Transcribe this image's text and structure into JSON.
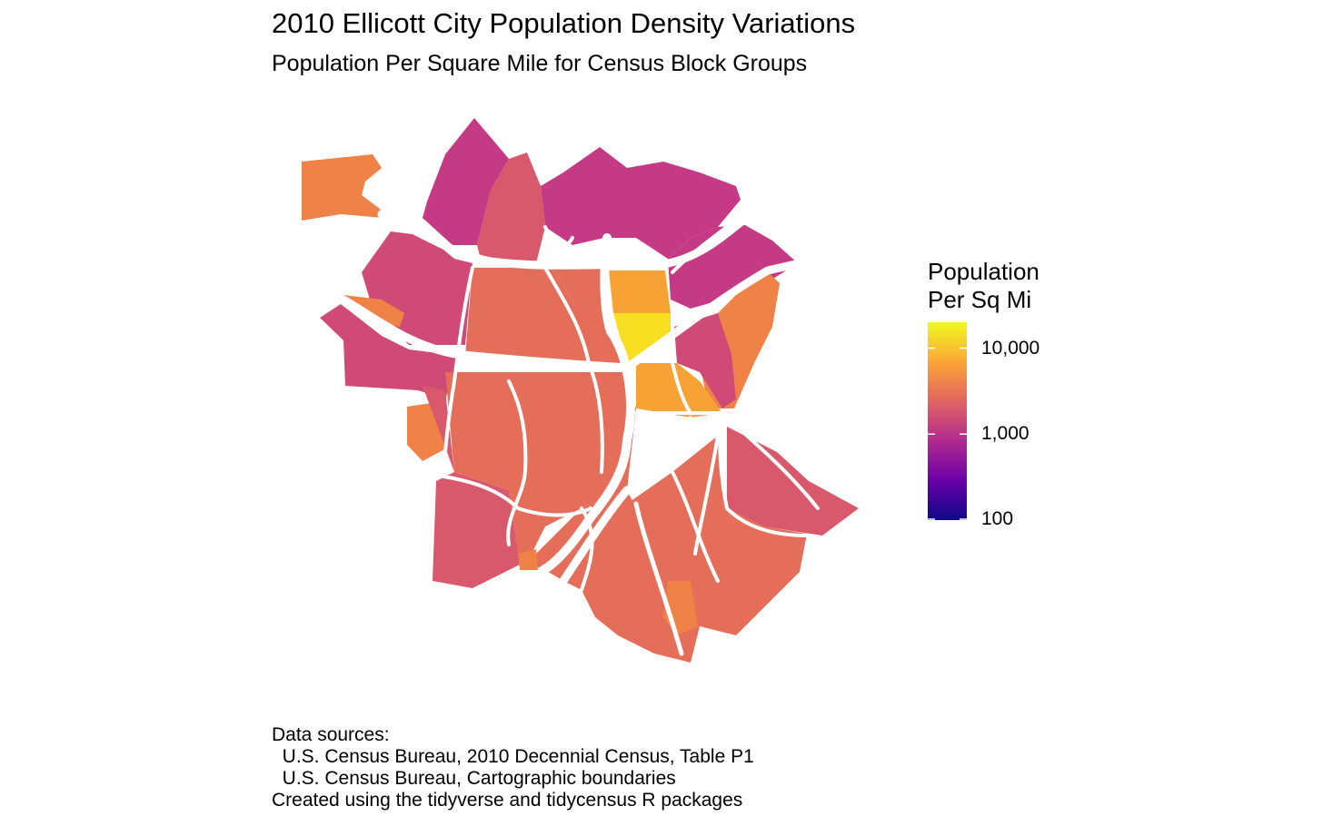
{
  "title": "2010 Ellicott City Population Density Variations",
  "subtitle": "Population Per Square Mile for Census Block Groups",
  "legend": {
    "title_line1": "Population",
    "title_line2": "Per Sq Mi",
    "scale": "log",
    "breaks": [
      {
        "label": "10,000",
        "value": 10000
      },
      {
        "label": "1,000",
        "value": 1000
      },
      {
        "label": "100",
        "value": 100
      }
    ],
    "gradient": [
      "#0d0887",
      "#6a00a8",
      "#b12a90",
      "#e16462",
      "#fca636",
      "#f0f921"
    ]
  },
  "caption": {
    "line1": "Data sources:",
    "line2": "  U.S. Census Bureau, 2010 Decennial Census, Table P1",
    "line3": "  U.S. Census Bureau, Cartographic boundaries",
    "line4": "Created using the tidyverse and tidycensus R packages"
  },
  "colors": {
    "deep_magenta": "#c53a84",
    "magenta": "#cf4a76",
    "rose": "#d8596b",
    "coral": "#e46e5a",
    "orange": "#ef8247",
    "light_orange": "#f6a234",
    "yellow": "#f8df22",
    "roads": "#ffffff"
  }
}
